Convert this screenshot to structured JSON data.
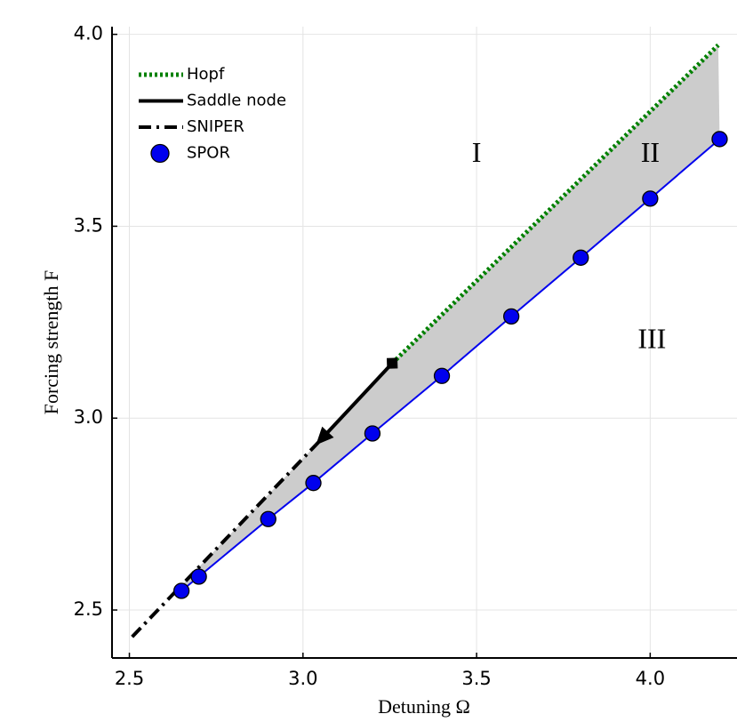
{
  "chart_data": {
    "type": "line",
    "xlabel": "Detuning Ω",
    "ylabel": "Forcing strength F",
    "xlim": [
      2.45,
      4.25
    ],
    "ylim": [
      2.375,
      4.02
    ],
    "xticks": [
      2.5,
      {
        "value": 3,
        "label": "3.0"
      },
      3.5,
      {
        "value": 4,
        "label": "4.0"
      }
    ],
    "yticks": [
      2.5,
      {
        "value": 3,
        "label": "3.0"
      },
      3.5,
      {
        "value": 4,
        "label": "4.0"
      }
    ],
    "grid": true,
    "legend": "top-left",
    "series": [
      {
        "name": "Hopf",
        "color": "#008000",
        "style": "dotted",
        "x": [
          3.257,
          4.196
        ],
        "y": [
          3.143,
          3.972
        ]
      },
      {
        "name": "Saddle node",
        "color": "#000000",
        "style": "solid",
        "arrow": true,
        "x": [
          3.257,
          3.037
        ],
        "y": [
          3.143,
          2.93
        ]
      },
      {
        "name": "SNIPER",
        "color": "#000000",
        "style": "dashdot",
        "x": [
          2.508,
          3.037
        ],
        "y": [
          2.43,
          2.93
        ]
      },
      {
        "name": "SPOR",
        "color": "#0000ee",
        "style": "solid",
        "marker": "circle",
        "x": [
          2.65,
          2.7,
          2.9,
          3.03,
          3.2,
          3.4,
          3.6,
          3.8,
          4.0,
          4.2
        ],
        "y": [
          2.55,
          2.587,
          2.737,
          2.831,
          2.96,
          3.11,
          3.265,
          3.418,
          3.572,
          3.727
        ]
      }
    ],
    "annotations": [
      {
        "text": "I",
        "x": 3.5,
        "y": 3.685
      },
      {
        "text": "II",
        "x": 4.0,
        "y": 3.685
      },
      {
        "text": "III",
        "x": 4.005,
        "y": 3.2
      }
    ]
  }
}
